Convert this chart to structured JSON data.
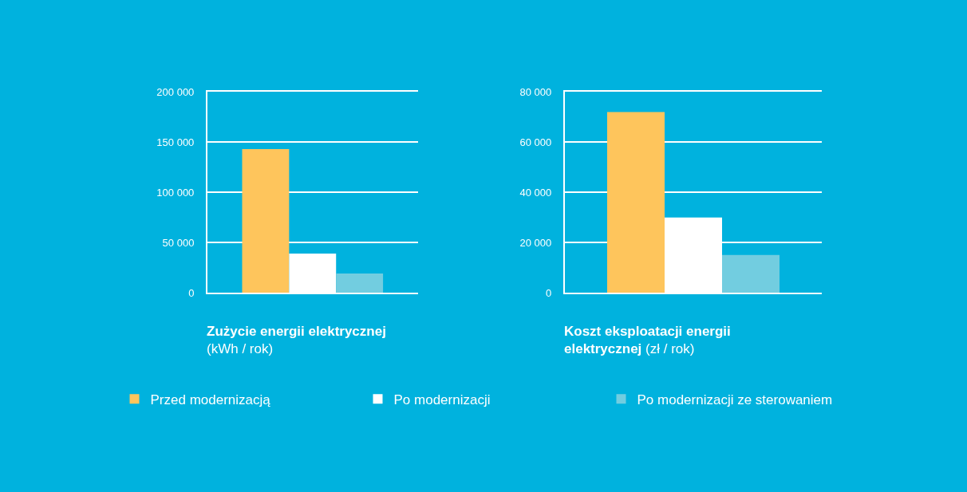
{
  "chart_data": [
    {
      "type": "bar",
      "title": "Zużycie energii elektrycznej",
      "subtitle": "(kWh / rok)",
      "categories": [
        null
      ],
      "series": [
        {
          "name": "Przed modernizacją",
          "color": "#fec55c",
          "values": [
            143000
          ]
        },
        {
          "name": "Po modernizacji",
          "color": "#ffffff",
          "values": [
            39000
          ]
        },
        {
          "name": "Po modernizacji ze sterowaniem",
          "color": "#72cde0",
          "values": [
            19000
          ]
        }
      ],
      "ylim": [
        0,
        200000
      ],
      "yticks": [
        0,
        {
          "value": 50000,
          "label": "50 000"
        },
        {
          "value": 100000,
          "label": "100 000"
        },
        {
          "value": 150000,
          "label": "150 000"
        },
        {
          "value": 200000,
          "label": "200 000"
        }
      ],
      "grid": "y",
      "legend": "bottom"
    },
    {
      "type": "bar",
      "title": "Koszt eksploatacji energii elektrycznej",
      "subtitle": "(zł / rok)",
      "categories": [
        null
      ],
      "series": [
        {
          "color": "#fec55c",
          "values": [
            72000
          ]
        },
        {
          "color": "#ffffff",
          "values": [
            30000
          ]
        },
        {
          "color": "#72cde0",
          "values": [
            15000
          ]
        }
      ],
      "ylim": [
        0,
        80000
      ],
      "yticks": [
        0,
        {
          "value": 20000,
          "label": "20 000"
        },
        {
          "value": 40000,
          "label": "40 000"
        },
        {
          "value": 60000,
          "label": "60 000"
        },
        {
          "value": 80000,
          "label": "80 000"
        }
      ],
      "grid": "y",
      "legend": "bottom"
    }
  ]
}
